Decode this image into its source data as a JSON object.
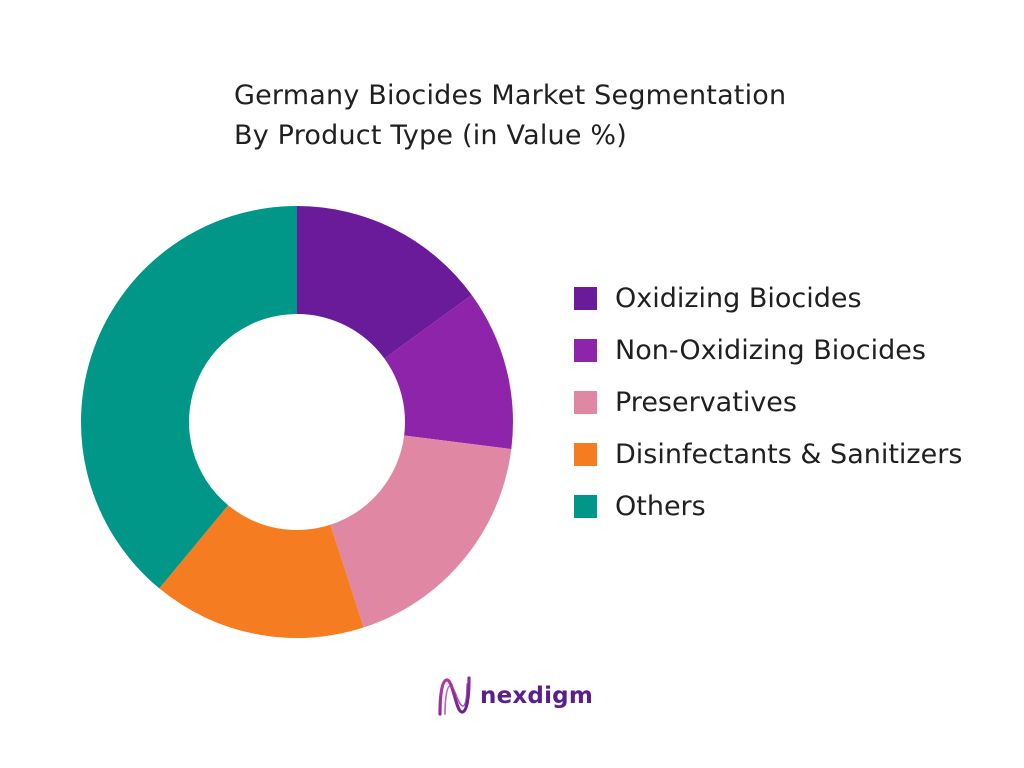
{
  "chart_data": {
    "type": "pie",
    "title": "Germany Biocides Market Segmentation\nBy Product Type (in Value %)",
    "title_lines": [
      "Germany Biocides Market Segmentation",
      "By Product Type (in Value %)"
    ],
    "donut": true,
    "series": [
      {
        "name": "Oxidizing Biocides",
        "value": 15,
        "color": "#6a1b9a"
      },
      {
        "name": "Non-Oxidizing Biocides",
        "value": 12,
        "color": "#8e24aa"
      },
      {
        "name": "Preservatives",
        "value": 18,
        "color": "#e088a3"
      },
      {
        "name": "Disinfectants & Sanitizers",
        "value": 16,
        "color": "#f57c20"
      },
      {
        "name": "Others",
        "value": 39,
        "color": "#009688"
      }
    ],
    "legend_position": "right"
  },
  "brand": {
    "name": "nexdigm",
    "icon": "nexdigm-logo-icon",
    "color": "#5a1f8c"
  }
}
